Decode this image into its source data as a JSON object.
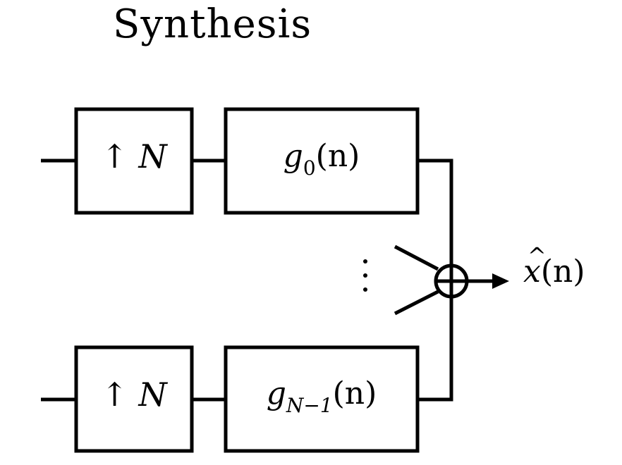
{
  "title": "Synthesis",
  "branches": [
    {
      "upsampler": {
        "arrow": "↑",
        "symbol": "N"
      },
      "filter": {
        "name": "g",
        "subscript": "0",
        "arg": "(n)"
      }
    },
    {
      "upsampler": {
        "arrow": "↑",
        "symbol": "N"
      },
      "filter": {
        "name": "g",
        "subscript": "N−1",
        "arg": "(n)"
      }
    }
  ],
  "output": {
    "name": "x",
    "arg": "(n)"
  },
  "ellipsis": "⋮"
}
